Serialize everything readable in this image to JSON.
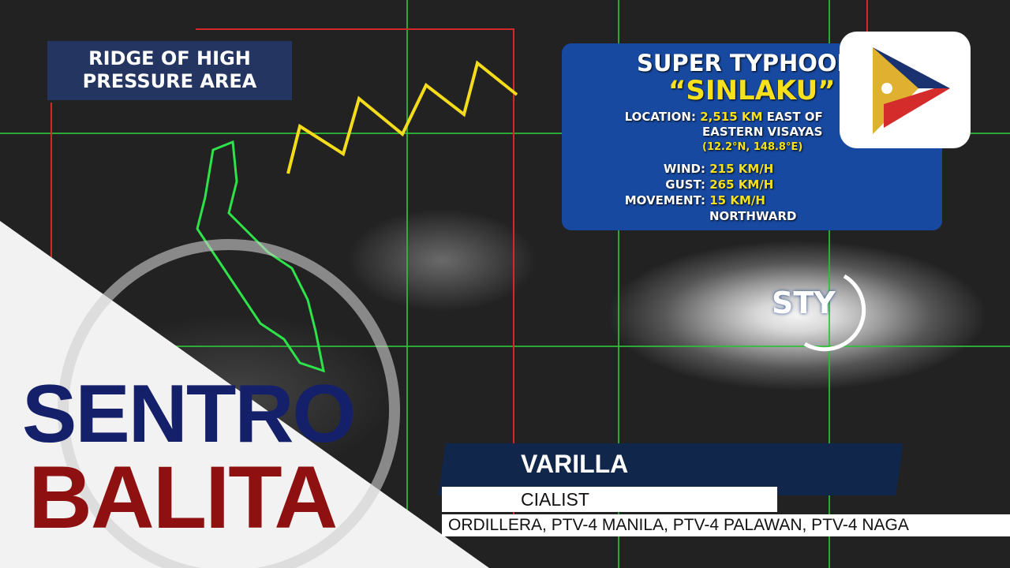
{
  "map_label": {
    "line1": "RIDGE OF HIGH",
    "line2": "PRESSURE AREA"
  },
  "typhoon_marker": "STY",
  "info_panel": {
    "title": "SUPER TYPHOON",
    "name": "“SINLAKU”",
    "location_label": "LOCATION:",
    "location_value": "2,515 KM",
    "location_rest": " EAST OF",
    "location_line2": "EASTERN VISAYAS",
    "coords": "(12.2°N, 148.8°E)",
    "wind_label": "WIND:",
    "wind_value": "215 KM/H",
    "gust_label": "GUST:",
    "gust_value": "265 KM/H",
    "movement_label": "MOVEMENT:",
    "movement_value": "15 KM/H",
    "movement_dir": "NORTHWARD"
  },
  "show": {
    "line1": "SENTRO",
    "line2": "BALITA"
  },
  "lower_third": {
    "name": "VARILLA",
    "title": "CIALIST",
    "ticker": "ORDILLERA, PTV-4 MANILA, PTV-4 PALAWAN, PTV-4 NAGA"
  },
  "colors": {
    "panel": "#1749a0",
    "accent_yellow": "#f7e11c",
    "sentro_blue": "#15206a",
    "balita_red": "#8e1010",
    "grid_green": "#2fbf3a",
    "box_red": "#d12a2a"
  },
  "logo": {
    "icon": "ptv-logo"
  }
}
